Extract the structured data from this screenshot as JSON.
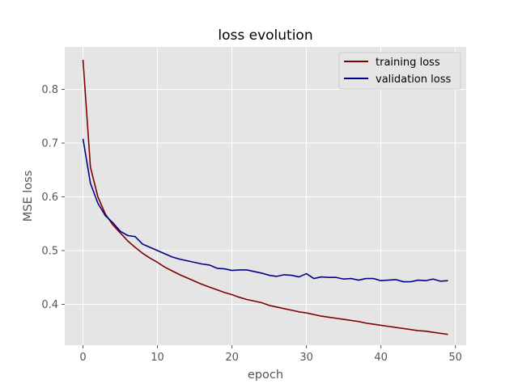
{
  "chart_data": {
    "type": "line",
    "title": "loss evolution",
    "xlabel": "epoch",
    "ylabel": "MSE loss",
    "xlim": [
      -2.45,
      51.45
    ],
    "ylim": [
      0.324,
      0.879
    ],
    "xticks": [
      0,
      10,
      20,
      30,
      40,
      50
    ],
    "yticks": [
      0.4,
      0.5,
      0.6,
      0.7,
      0.8
    ],
    "grid": true,
    "legend_position": "top-right",
    "x": [
      0,
      1,
      2,
      3,
      4,
      5,
      6,
      7,
      8,
      9,
      10,
      11,
      12,
      13,
      14,
      15,
      16,
      17,
      18,
      19,
      20,
      21,
      22,
      23,
      24,
      25,
      26,
      27,
      28,
      29,
      30,
      31,
      32,
      33,
      34,
      35,
      36,
      37,
      38,
      39,
      40,
      41,
      42,
      43,
      44,
      45,
      46,
      47,
      48,
      49
    ],
    "series": [
      {
        "name": "training loss",
        "color": "#800000",
        "values": [
          0.855,
          0.655,
          0.6,
          0.568,
          0.548,
          0.533,
          0.518,
          0.506,
          0.495,
          0.486,
          0.478,
          0.469,
          0.462,
          0.455,
          0.449,
          0.443,
          0.437,
          0.432,
          0.427,
          0.422,
          0.418,
          0.413,
          0.409,
          0.406,
          0.403,
          0.398,
          0.395,
          0.392,
          0.389,
          0.386,
          0.384,
          0.381,
          0.378,
          0.376,
          0.374,
          0.372,
          0.37,
          0.368,
          0.365,
          0.363,
          0.361,
          0.359,
          0.357,
          0.355,
          0.353,
          0.351,
          0.35,
          0.348,
          0.346,
          0.344
        ]
      },
      {
        "name": "validation loss",
        "color": "#00008b",
        "values": [
          0.708,
          0.625,
          0.588,
          0.565,
          0.552,
          0.536,
          0.528,
          0.526,
          0.512,
          0.506,
          0.5,
          0.494,
          0.488,
          0.484,
          0.481,
          0.478,
          0.475,
          0.473,
          0.467,
          0.466,
          0.463,
          0.464,
          0.464,
          0.461,
          0.458,
          0.454,
          0.452,
          0.455,
          0.454,
          0.451,
          0.457,
          0.448,
          0.451,
          0.45,
          0.45,
          0.447,
          0.448,
          0.445,
          0.448,
          0.448,
          0.444,
          0.445,
          0.446,
          0.442,
          0.442,
          0.445,
          0.444,
          0.447,
          0.443,
          0.444
        ]
      }
    ]
  }
}
